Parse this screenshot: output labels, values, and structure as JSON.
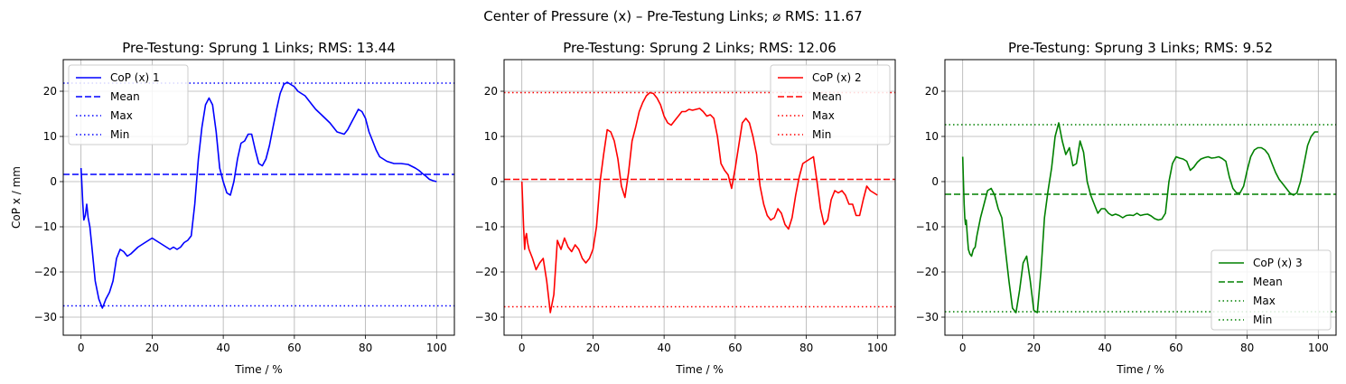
{
  "figure": {
    "suptitle": "Center of Pressure (x) – Pre-Testung Links; ⌀ RMS: 11.67"
  },
  "chart_data": [
    {
      "type": "line",
      "title": "Pre-Testung: Sprung 1 Links; RMS: 13.44",
      "xlabel": "Time / %",
      "ylabel": "CoP x / mm",
      "xlim": [
        -5,
        105
      ],
      "ylim": [
        -34,
        27
      ],
      "xticks": [
        0,
        20,
        40,
        60,
        80,
        100
      ],
      "yticks": [
        -30,
        -20,
        -10,
        0,
        10,
        20
      ],
      "grid": true,
      "legend_position": "upper left",
      "color": "#0000ff",
      "series": [
        {
          "name": "CoP (x) 1",
          "style": "solid",
          "x": [
            0,
            0.2,
            0.5,
            0.8,
            1.2,
            1.6,
            2.0,
            2.5,
            3,
            4,
            5,
            6,
            6.5,
            7,
            8,
            9,
            10,
            11,
            12,
            13,
            14,
            16,
            18,
            20,
            21,
            22,
            24,
            25,
            26,
            27,
            28,
            29,
            30,
            31,
            32,
            33,
            34,
            35,
            36,
            37,
            38,
            39,
            40,
            41,
            42,
            43,
            44,
            45,
            46,
            47,
            48,
            49,
            50,
            51,
            52,
            53,
            54,
            55,
            56,
            57,
            58,
            59,
            60,
            61,
            62,
            63,
            64,
            65,
            66,
            68,
            70,
            72,
            74,
            75,
            76,
            77,
            78,
            79,
            80,
            81,
            82,
            83,
            84,
            85,
            86,
            88,
            90,
            92,
            94,
            95,
            96,
            97,
            98,
            99,
            100
          ],
          "y": [
            3.0,
            0.0,
            -5.0,
            -8.5,
            -7.5,
            -5.0,
            -8.0,
            -10.0,
            -14.0,
            -22.0,
            -26.0,
            -28.0,
            -27.0,
            -26.0,
            -24.5,
            -22.0,
            -17.0,
            -15.0,
            -15.5,
            -16.5,
            -16.0,
            -14.5,
            -13.5,
            -12.5,
            -13.0,
            -13.5,
            -14.5,
            -15.0,
            -14.5,
            -15.0,
            -14.5,
            -13.5,
            -13.0,
            -12.0,
            -5.0,
            5.0,
            12.0,
            17.0,
            18.5,
            17.0,
            11.0,
            3.0,
            0.0,
            -2.5,
            -3.0,
            0.0,
            5.0,
            8.5,
            9.0,
            10.5,
            10.5,
            7.0,
            4.0,
            3.5,
            5.0,
            8.0,
            12.0,
            16.0,
            19.5,
            21.5,
            22.0,
            21.5,
            21.0,
            20.0,
            19.5,
            19.0,
            18.0,
            17.0,
            16.0,
            14.5,
            13.0,
            11.0,
            10.5,
            11.5,
            13.0,
            14.5,
            16.0,
            15.5,
            14.0,
            11.0,
            9.0,
            7.0,
            5.5,
            5.0,
            4.5,
            4.0,
            4.0,
            3.8,
            3.0,
            2.5,
            1.8,
            1.2,
            0.5,
            0.2,
            0.0
          ]
        },
        {
          "name": "Mean",
          "style": "dashed",
          "value": 1.6
        },
        {
          "name": "Max",
          "style": "dotted",
          "value": 21.8
        },
        {
          "name": "Min",
          "style": "dotted",
          "value": -27.5
        }
      ]
    },
    {
      "type": "line",
      "title": "Pre-Testung: Sprung 2 Links; RMS: 12.06",
      "xlabel": "Time / %",
      "ylabel": "",
      "xlim": [
        -5,
        105
      ],
      "ylim": [
        -34,
        27
      ],
      "xticks": [
        0,
        20,
        40,
        60,
        80,
        100
      ],
      "yticks": [
        -30,
        -20,
        -10,
        0,
        10,
        20
      ],
      "grid": true,
      "legend_position": "upper right",
      "color": "#ff0000",
      "series": [
        {
          "name": "CoP (x) 2",
          "style": "solid",
          "x": [
            0,
            0.2,
            0.5,
            0.8,
            1.0,
            1.3,
            1.6,
            2,
            3,
            4,
            5,
            6,
            7,
            8,
            9,
            10,
            11,
            12,
            13,
            14,
            15,
            16,
            17,
            18,
            19,
            20,
            21,
            22,
            23,
            24,
            25,
            26,
            27,
            28,
            29,
            30,
            31,
            32,
            33,
            34,
            35,
            36,
            37,
            38,
            39,
            40,
            41,
            42,
            43,
            44,
            45,
            46,
            47,
            48,
            49,
            50,
            51,
            52,
            53,
            54,
            55,
            56,
            57,
            58,
            59,
            60,
            61,
            62,
            63,
            64,
            65,
            66,
            67,
            68,
            69,
            70,
            71,
            72,
            73,
            74,
            75,
            76,
            77,
            78,
            79,
            80,
            81,
            82,
            83,
            84,
            85,
            86,
            87,
            88,
            89,
            90,
            91,
            92,
            93,
            94,
            95,
            96,
            97,
            98,
            99,
            100
          ],
          "y": [
            0.0,
            -4.0,
            -10.0,
            -15.0,
            -12.5,
            -11.5,
            -13.5,
            -15.0,
            -17.0,
            -19.5,
            -18.0,
            -17.0,
            -22.0,
            -29.0,
            -25.0,
            -13.0,
            -15.0,
            -12.5,
            -14.5,
            -15.5,
            -14.0,
            -15.0,
            -17.0,
            -18.0,
            -17.0,
            -15.0,
            -10.0,
            0.0,
            6.0,
            11.5,
            11.0,
            9.0,
            5.0,
            -1.0,
            -3.5,
            2.0,
            9.0,
            12.0,
            15.5,
            17.5,
            19.0,
            19.7,
            19.5,
            18.5,
            17.0,
            14.5,
            13.0,
            12.5,
            13.5,
            14.5,
            15.5,
            15.5,
            16.0,
            15.8,
            16.0,
            16.2,
            15.5,
            14.5,
            14.8,
            14.0,
            10.0,
            4.0,
            2.5,
            1.5,
            -1.5,
            3.0,
            8.0,
            13.0,
            14.0,
            13.0,
            10.0,
            6.0,
            -1.0,
            -5.0,
            -7.5,
            -8.5,
            -8.0,
            -6.0,
            -7.0,
            -9.5,
            -10.5,
            -8.0,
            -3.0,
            1.0,
            4.0,
            4.5,
            5.0,
            5.5,
            0.0,
            -6.0,
            -9.5,
            -8.5,
            -4.0,
            -2.0,
            -2.5,
            -2.0,
            -3.0,
            -5.0,
            -5.0,
            -7.5,
            -7.5,
            -4.0,
            -1.0,
            -2.0,
            -2.5,
            -3.0
          ]
        },
        {
          "name": "Mean",
          "style": "dashed",
          "value": 0.5
        },
        {
          "name": "Max",
          "style": "dotted",
          "value": 19.7
        },
        {
          "name": "Min",
          "style": "dotted",
          "value": -27.7
        }
      ]
    },
    {
      "type": "line",
      "title": "Pre-Testung: Sprung 3 Links; RMS: 9.52",
      "xlabel": "Time / %",
      "ylabel": "",
      "xlim": [
        -5,
        105
      ],
      "ylim": [
        -34,
        27
      ],
      "xticks": [
        0,
        20,
        40,
        60,
        80,
        100
      ],
      "yticks": [
        -30,
        -20,
        -10,
        0,
        10,
        20
      ],
      "grid": true,
      "legend_position": "lower right",
      "color": "#008000",
      "series": [
        {
          "name": "CoP (x) 3",
          "style": "solid",
          "x": [
            0,
            0.2,
            0.4,
            0.6,
            0.8,
            1.0,
            1.3,
            1.6,
            2,
            2.5,
            3,
            3.5,
            4,
            5,
            6,
            7,
            8,
            9,
            10,
            11,
            12,
            13,
            14,
            15,
            16,
            17,
            18,
            19,
            20,
            21,
            22,
            23,
            24,
            25,
            26,
            27,
            28,
            29,
            30,
            31,
            32,
            33,
            34,
            35,
            36,
            37,
            38,
            39,
            40,
            41,
            42,
            43,
            44,
            45,
            46,
            47,
            48,
            49,
            50,
            51,
            52,
            53,
            54,
            55,
            56,
            57,
            58,
            59,
            60,
            61,
            62,
            63,
            64,
            65,
            66,
            67,
            68,
            69,
            70,
            71,
            72,
            73,
            74,
            75,
            76,
            77,
            78,
            79,
            80,
            81,
            82,
            83,
            84,
            85,
            86,
            87,
            88,
            89,
            90,
            91,
            92,
            93,
            94,
            95,
            96,
            97,
            98,
            99,
            100
          ],
          "y": [
            5.5,
            0.0,
            -5.0,
            -8.0,
            -9.5,
            -8.5,
            -12.0,
            -15.0,
            -16.0,
            -16.5,
            -15.0,
            -14.5,
            -12.0,
            -8.0,
            -5.0,
            -2.0,
            -1.5,
            -3.0,
            -6.0,
            -8.0,
            -15.0,
            -22.0,
            -28.0,
            -29.0,
            -24.0,
            -18.0,
            -16.5,
            -22.0,
            -28.5,
            -29.0,
            -20.0,
            -8.0,
            -2.0,
            3.0,
            10.0,
            13.0,
            9.0,
            6.0,
            7.5,
            3.5,
            4.0,
            9.0,
            6.5,
            0.0,
            -3.0,
            -5.0,
            -7.0,
            -6.0,
            -6.0,
            -7.0,
            -7.5,
            -7.2,
            -7.5,
            -8.0,
            -7.5,
            -7.4,
            -7.5,
            -7.0,
            -7.5,
            -7.3,
            -7.2,
            -7.6,
            -8.2,
            -8.5,
            -8.3,
            -7.0,
            0.0,
            4.0,
            5.5,
            5.2,
            5.0,
            4.5,
            2.5,
            3.2,
            4.3,
            5.0,
            5.3,
            5.5,
            5.2,
            5.3,
            5.5,
            5.1,
            4.5,
            1.0,
            -1.5,
            -2.5,
            -2.5,
            -1.0,
            2.5,
            5.5,
            7.0,
            7.5,
            7.5,
            7.0,
            6.0,
            4.0,
            2.0,
            0.5,
            -0.5,
            -1.5,
            -2.5,
            -3.0,
            -2.5,
            0.0,
            4.0,
            8.0,
            10.0,
            11.0,
            11.0
          ]
        },
        {
          "name": "Mean",
          "style": "dashed",
          "value": -2.8
        },
        {
          "name": "Max",
          "style": "dotted",
          "value": 12.6
        },
        {
          "name": "Min",
          "style": "dotted",
          "value": -28.8
        }
      ]
    }
  ]
}
